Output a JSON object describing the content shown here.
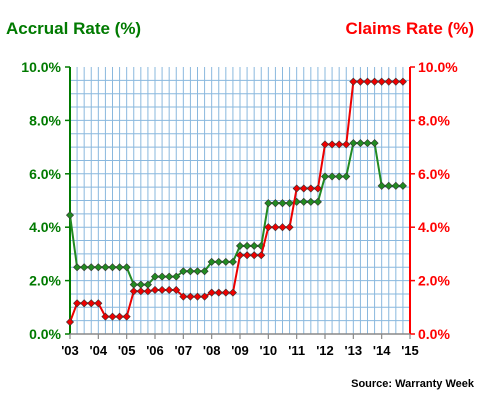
{
  "chart_data": {
    "type": "line",
    "title": "",
    "y_left_label": "Accrual Rate (%)",
    "y_right_label": "Claims Rate (%)",
    "y_left_ticks": [
      "0.0%",
      "2.0%",
      "4.0%",
      "6.0%",
      "8.0%",
      "10.0%"
    ],
    "y_right_ticks": [
      "0.0%",
      "2.0%",
      "4.0%",
      "6.0%",
      "8.0%",
      "10.0%"
    ],
    "y_left_lim": [
      0,
      10
    ],
    "y_right_lim": [
      0,
      10
    ],
    "x_tick_labels": [
      "'03",
      "'04",
      "'05",
      "'06",
      "'07",
      "'08",
      "'09",
      "'10",
      "'11",
      "'12",
      "'13",
      "'14",
      "'15"
    ],
    "x_range": [
      "2003-Q1",
      "2015-Q1"
    ],
    "grid": true,
    "source": "Source: Warranty Week",
    "series": [
      {
        "name": "Accrual Rate (%)",
        "axis": "left",
        "color": "#228b22",
        "values": [
          4.45,
          2.5,
          2.5,
          2.5,
          2.5,
          2.5,
          2.5,
          2.5,
          2.5,
          1.85,
          1.85,
          1.85,
          2.15,
          2.15,
          2.15,
          2.15,
          2.35,
          2.35,
          2.35,
          2.35,
          2.7,
          2.7,
          2.7,
          2.7,
          3.3,
          3.3,
          3.3,
          3.3,
          4.9,
          4.9,
          4.9,
          4.9,
          4.95,
          4.95,
          4.95,
          4.95,
          5.9,
          5.9,
          5.9,
          5.9,
          7.15,
          7.15,
          7.15,
          7.15,
          5.55,
          5.55,
          5.55,
          5.55
        ]
      },
      {
        "name": "Claims Rate (%)",
        "axis": "right",
        "color": "#ee0000",
        "values": [
          0.45,
          1.15,
          1.15,
          1.15,
          1.15,
          0.65,
          0.65,
          0.65,
          0.65,
          1.6,
          1.6,
          1.6,
          1.65,
          1.65,
          1.65,
          1.65,
          1.4,
          1.4,
          1.4,
          1.4,
          1.55,
          1.55,
          1.55,
          1.55,
          2.95,
          2.95,
          2.95,
          2.95,
          4.0,
          4.0,
          4.0,
          4.0,
          5.45,
          5.45,
          5.45,
          5.45,
          7.1,
          7.1,
          7.1,
          7.1,
          9.45,
          9.45,
          9.45,
          9.45,
          9.45,
          9.45,
          9.45,
          9.45
        ]
      }
    ]
  }
}
